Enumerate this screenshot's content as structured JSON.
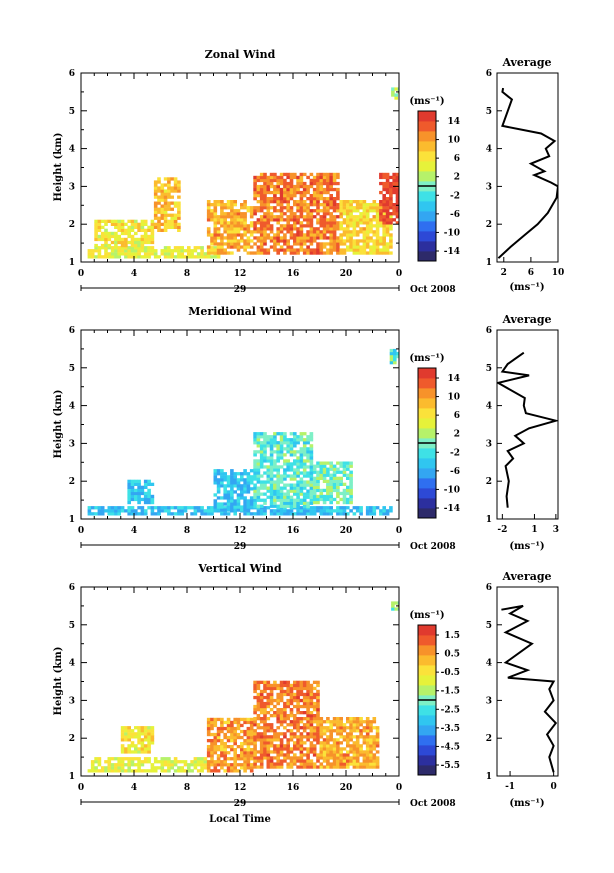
{
  "colors": {
    "scale": [
      "#2d2a6a",
      "#2c2f9e",
      "#2d49d6",
      "#2f6ff0",
      "#33a6f2",
      "#30c6f0",
      "#3ee1e6",
      "#7ef0c6",
      "#b6f26a",
      "#e6f23a",
      "#fbe23a",
      "#fbbb2e",
      "#f7922a",
      "#ef5a2c",
      "#e03a2e"
    ],
    "line": "#000000"
  },
  "x_axis": {
    "ticks": [
      "0",
      "4",
      "8",
      "12",
      "16",
      "20",
      "0"
    ],
    "day_label": "29",
    "month_label": "Oct 2008",
    "xlabel": "Local Time"
  },
  "ylabel": "Height (km)",
  "average_title": "Average",
  "unit": "(ms⁻¹)",
  "panels": [
    {
      "title": "Zonal Wind",
      "cbar_ticks": [
        "14",
        "10",
        "6",
        "2",
        "-2",
        "-6",
        "-10",
        "-14"
      ],
      "avg_xticks": [
        "2",
        "6",
        "10"
      ]
    },
    {
      "title": "Meridional Wind",
      "cbar_ticks": [
        "14",
        "10",
        "6",
        "2",
        "-2",
        "-6",
        "-10",
        "-14"
      ],
      "avg_xticks": [
        "-2",
        "1",
        "3"
      ]
    },
    {
      "title": "Vertical Wind",
      "cbar_ticks": [
        "1.5",
        "0.5",
        "-0.5",
        "-1.5",
        "-2.5",
        "-3.5",
        "-4.5",
        "-5.5"
      ],
      "avg_xticks": [
        "-1",
        "0"
      ]
    }
  ],
  "chart_data": [
    {
      "type": "heatmap",
      "title": "Zonal Wind",
      "xlabel": "",
      "ylabel": "Height (km)",
      "xlim": [
        0,
        24
      ],
      "ylim": [
        1,
        6
      ],
      "colorbar": {
        "unit": "(ms⁻¹)",
        "range": [
          -14,
          14
        ]
      },
      "regions": [
        {
          "x": [
            0.5,
            10.5
          ],
          "y": [
            1.1,
            1.35
          ],
          "value": 4
        },
        {
          "x": [
            1.0,
            5.5
          ],
          "y": [
            1.4,
            2.1
          ],
          "value": 5
        },
        {
          "x": [
            5.5,
            7.5
          ],
          "y": [
            1.8,
            3.2
          ],
          "value": 7
        },
        {
          "x": [
            9.5,
            13.0
          ],
          "y": [
            1.2,
            2.6
          ],
          "value": 8
        },
        {
          "x": [
            13.0,
            19.5
          ],
          "y": [
            1.2,
            3.3
          ],
          "value": 10
        },
        {
          "x": [
            19.5,
            23.5
          ],
          "y": [
            1.2,
            2.6
          ],
          "value": 6
        },
        {
          "x": [
            22.5,
            23.8
          ],
          "y": [
            2.0,
            3.3
          ],
          "value": 13
        },
        {
          "x": [
            23.4,
            24.0
          ],
          "y": [
            5.3,
            5.6
          ],
          "value": 2
        }
      ]
    },
    {
      "type": "line",
      "title": "Average",
      "xlabel": "(ms⁻¹)",
      "ylabel": "",
      "xlim": [
        1,
        10
      ],
      "ylim": [
        1,
        6
      ],
      "x": [
        1.2,
        3.0,
        5.0,
        7.0,
        8.5,
        9.8,
        10.0,
        9.0,
        6.5,
        8.0,
        6.0,
        8.7,
        8.2,
        9.5,
        7.5,
        1.8,
        3.2,
        1.8,
        1.9
      ],
      "y": [
        1.1,
        1.4,
        1.7,
        2.0,
        2.3,
        2.7,
        3.0,
        3.1,
        3.3,
        3.4,
        3.6,
        3.8,
        4.0,
        4.2,
        4.4,
        4.6,
        5.3,
        5.5,
        5.6
      ]
    },
    {
      "type": "heatmap",
      "title": "Meridional Wind",
      "xlabel": "",
      "ylabel": "Height (km)",
      "xlim": [
        0,
        24
      ],
      "ylim": [
        1,
        6
      ],
      "colorbar": {
        "unit": "(ms⁻¹)",
        "range": [
          -14,
          14
        ]
      },
      "regions": [
        {
          "x": [
            0.5,
            23.5
          ],
          "y": [
            1.1,
            1.3
          ],
          "value": -4
        },
        {
          "x": [
            3.5,
            5.5
          ],
          "y": [
            1.4,
            2.0
          ],
          "value": -3
        },
        {
          "x": [
            10.0,
            13.0
          ],
          "y": [
            1.2,
            2.3
          ],
          "value": -4
        },
        {
          "x": [
            13.0,
            17.5
          ],
          "y": [
            1.3,
            3.3
          ],
          "value": -1
        },
        {
          "x": [
            17.5,
            20.5
          ],
          "y": [
            1.4,
            2.5
          ],
          "value": 0
        },
        {
          "x": [
            23.3,
            24.0
          ],
          "y": [
            5.1,
            5.5
          ],
          "value": -1
        }
      ]
    },
    {
      "type": "line",
      "title": "Average",
      "xlabel": "(ms⁻¹)",
      "ylabel": "",
      "xlim": [
        -2.5,
        3.2
      ],
      "ylim": [
        1,
        6
      ],
      "x": [
        -1.5,
        -1.6,
        -1.4,
        -1.7,
        -1.0,
        -1.5,
        0.0,
        -0.8,
        0.5,
        3.0,
        0.2,
        0.0,
        0.1,
        -2.4,
        0.5,
        -2.0,
        -1.5,
        0.0,
        -1.0
      ],
      "y": [
        1.3,
        1.6,
        2.0,
        2.4,
        2.6,
        2.8,
        3.0,
        3.2,
        3.4,
        3.6,
        3.8,
        4.0,
        4.2,
        4.6,
        4.8,
        4.9,
        5.1,
        5.4,
        5.2
      ]
    },
    {
      "type": "heatmap",
      "title": "Vertical Wind",
      "xlabel": "Local Time",
      "ylabel": "Height (km)",
      "xlim": [
        0,
        24
      ],
      "ylim": [
        1,
        6
      ],
      "colorbar": {
        "unit": "(ms⁻¹)",
        "range": [
          -5.5,
          1.5
        ]
      },
      "regions": [
        {
          "x": [
            0.5,
            9.5
          ],
          "y": [
            1.1,
            1.5
          ],
          "value": -1.0
        },
        {
          "x": [
            3.0,
            5.5
          ],
          "y": [
            1.6,
            2.3
          ],
          "value": -0.8
        },
        {
          "x": [
            9.5,
            13.0
          ],
          "y": [
            1.1,
            2.5
          ],
          "value": 0.2
        },
        {
          "x": [
            13.0,
            18.0
          ],
          "y": [
            1.2,
            3.5
          ],
          "value": 0.5
        },
        {
          "x": [
            18.0,
            22.5
          ],
          "y": [
            1.2,
            2.5
          ],
          "value": 0.0
        },
        {
          "x": [
            23.4,
            24.0
          ],
          "y": [
            5.3,
            5.6
          ],
          "value": -1.7
        }
      ]
    },
    {
      "type": "line",
      "title": "Average",
      "xlabel": "(ms⁻¹)",
      "ylabel": "",
      "xlim": [
        -1.3,
        0.1
      ],
      "ylim": [
        1,
        6
      ],
      "x": [
        0.0,
        -0.1,
        0.0,
        -0.15,
        0.05,
        -0.2,
        0.0,
        -0.1,
        0.0,
        -1.05,
        -0.6,
        -1.1,
        -0.5,
        -1.1,
        -0.6,
        -1.0,
        -0.7,
        -1.2
      ],
      "y": [
        1.1,
        1.5,
        1.8,
        2.1,
        2.4,
        2.7,
        3.0,
        3.3,
        3.5,
        3.6,
        3.8,
        4.0,
        4.5,
        4.8,
        5.1,
        5.3,
        5.5,
        5.4
      ]
    }
  ]
}
